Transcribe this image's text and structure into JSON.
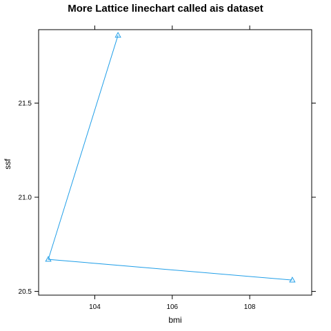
{
  "chart_data": {
    "type": "line",
    "title": "More Lattice linechart called ais dataset",
    "xlabel": "bmi",
    "ylabel": "ssf",
    "xlim": [
      102.55,
      109.6
    ],
    "ylim": [
      20.48,
      21.89
    ],
    "x_ticks": [
      104,
      106,
      108
    ],
    "x_tick_labels": [
      "104",
      "106",
      "108"
    ],
    "y_ticks": [
      20.5,
      21.0,
      21.5
    ],
    "y_tick_labels": [
      "20.5",
      "21.0",
      "21.5"
    ],
    "grid": false,
    "marker": "triangle",
    "color": "#1f9ee8",
    "series": [
      {
        "x": [
          104.6,
          102.8,
          109.1
        ],
        "y": [
          21.86,
          20.67,
          20.56
        ]
      }
    ]
  }
}
